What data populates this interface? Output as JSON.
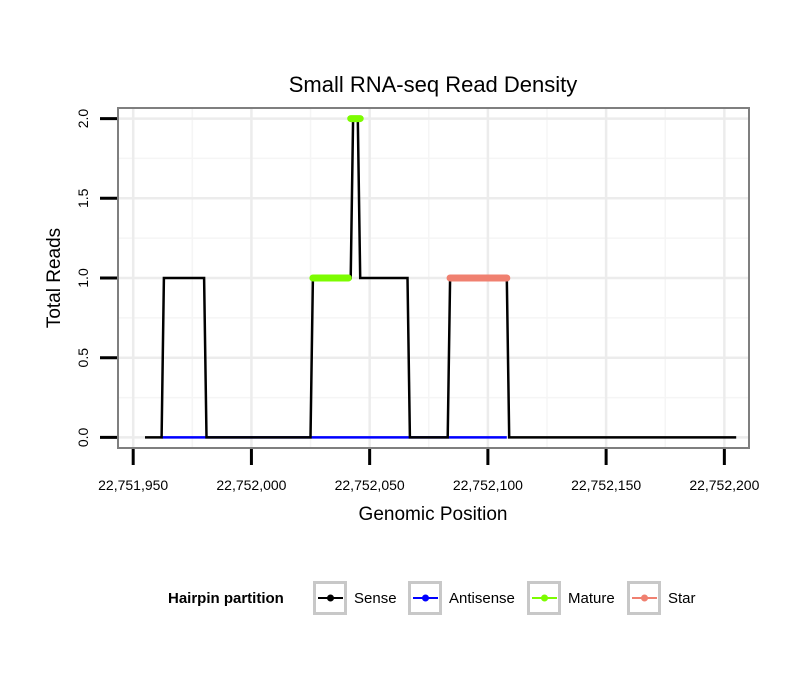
{
  "chart_data": {
    "type": "line",
    "title": "Small RNA-seq Read Density",
    "xlabel": "Genomic Position",
    "ylabel": "Total Reads",
    "xlim": [
      22751944,
      22752210
    ],
    "ylim": [
      -0.06,
      2.06
    ],
    "x_ticks": [
      22751950,
      22752000,
      22752050,
      22752100,
      22752150,
      22752200
    ],
    "x_tick_labels": [
      "22,751,950",
      "22,752,000",
      "22,752,050",
      "22,752,100",
      "22,752,150",
      "22,752,200"
    ],
    "y_ticks": [
      0,
      0.5,
      1,
      1.5,
      2
    ],
    "y_tick_labels": [
      "0.0",
      "0.5",
      "1.0",
      "1.5",
      "2.0"
    ],
    "grid": true,
    "series": [
      {
        "name": "Sense",
        "color": "#000000",
        "x": [
          22751955,
          22751962,
          22751963,
          22751980,
          22751981,
          22752025,
          22752026,
          22752042,
          22752043,
          22752045,
          22752046,
          22752066,
          22752067,
          22752083,
          22752084,
          22752108,
          22752109,
          22752205
        ],
        "y": [
          0,
          0,
          1,
          1,
          0,
          0,
          1,
          1,
          2,
          2,
          1,
          1,
          0,
          0,
          1,
          1,
          0,
          0
        ]
      },
      {
        "name": "Antisense",
        "color": "#0000FF",
        "x": [
          22751962,
          22752108
        ],
        "y": [
          0,
          0
        ]
      },
      {
        "name": "Mature",
        "color": "#7CFC00",
        "segments": [
          {
            "x": [
              22752026,
              22752041
            ],
            "y": [
              1,
              1
            ]
          },
          {
            "x": [
              22752042,
              22752046
            ],
            "y": [
              2,
              2
            ]
          }
        ]
      },
      {
        "name": "Star",
        "color": "#F08070",
        "segments": [
          {
            "x": [
              22752084,
              22752108
            ],
            "y": [
              1,
              1
            ]
          }
        ]
      }
    ],
    "legend": {
      "title": "Hairpin partition",
      "position": "bottom",
      "entries": [
        "Sense",
        "Antisense",
        "Mature",
        "Star"
      ]
    }
  }
}
